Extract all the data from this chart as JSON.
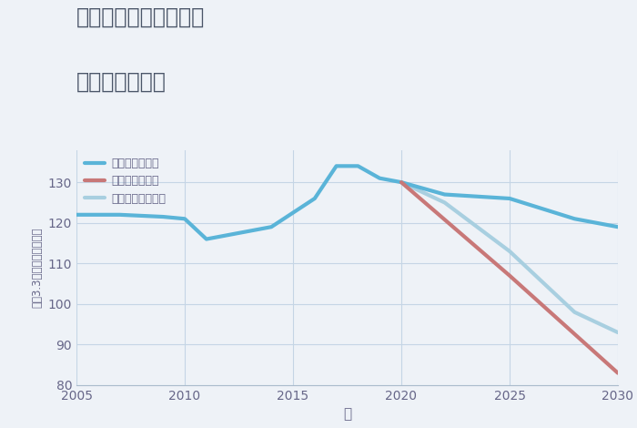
{
  "title_line1": "兵庫県西宮市門戸荘の",
  "title_line2": "土地の価格推移",
  "xlabel": "年",
  "ylabel": "坪（3.3㎡）単価（万円）",
  "background_color": "#eef2f7",
  "plot_background_color": "#eef2f7",
  "xlim": [
    2005,
    2030
  ],
  "ylim": [
    80,
    138
  ],
  "yticks": [
    80,
    90,
    100,
    110,
    120,
    130
  ],
  "xticks": [
    2005,
    2010,
    2015,
    2020,
    2025,
    2030
  ],
  "grid_color": "#c5d5e5",
  "good_scenario": {
    "label": "グッドシナリオ",
    "color": "#5ab4d8",
    "linewidth": 3.0,
    "x": [
      2005,
      2007,
      2009,
      2010,
      2011,
      2013,
      2014,
      2016,
      2017,
      2018,
      2019,
      2020,
      2022,
      2025,
      2028,
      2030
    ],
    "y": [
      122,
      122,
      121.5,
      121,
      116,
      118,
      119,
      126,
      134,
      134,
      131,
      130,
      127,
      126,
      121,
      119
    ]
  },
  "bad_scenario": {
    "label": "バッドシナリオ",
    "color": "#c87878",
    "linewidth": 3.0,
    "x": [
      2020,
      2025,
      2030
    ],
    "y": [
      130,
      107,
      83
    ]
  },
  "normal_scenario": {
    "label": "ノーマルシナリオ",
    "color": "#a8cfe0",
    "linewidth": 3.0,
    "x": [
      2020,
      2022,
      2025,
      2028,
      2030
    ],
    "y": [
      130,
      125,
      113,
      98,
      93
    ]
  },
  "title_color": "#4a5568",
  "tick_color": "#666688",
  "label_color": "#666688"
}
